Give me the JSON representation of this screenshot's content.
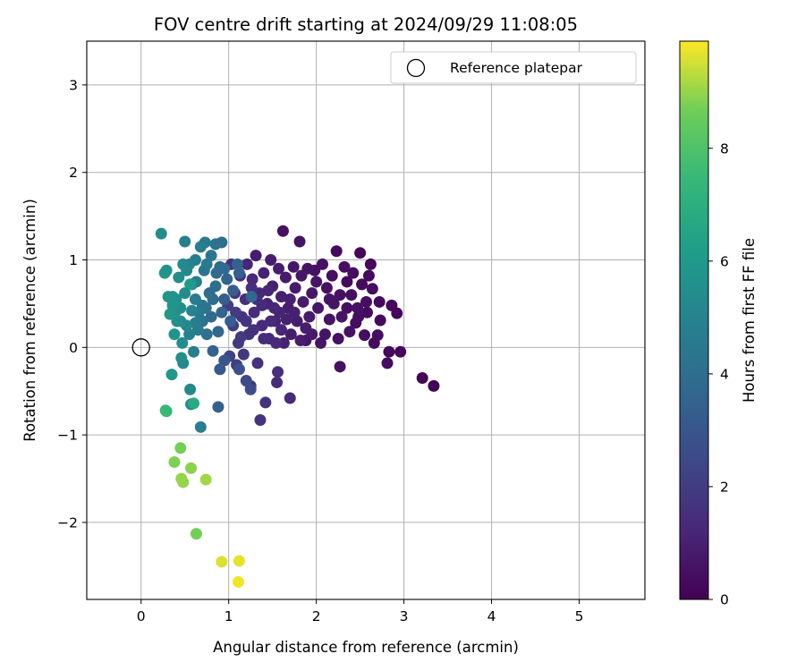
{
  "chart_data": {
    "type": "scatter",
    "title": "FOV centre drift starting at 2024/09/29 11:08:05",
    "xlabel": "Angular distance from reference (arcmin)",
    "ylabel": "Rotation from reference (arcmin)",
    "xlim": [
      -0.62,
      5.75
    ],
    "ylim": [
      -2.88,
      3.5
    ],
    "xticks": [
      0,
      1,
      2,
      3,
      4,
      5
    ],
    "yticks": [
      -2,
      -1,
      0,
      1,
      2,
      3
    ],
    "grid": true,
    "legend": {
      "placement": "upper right",
      "entries": [
        "Reference platepar"
      ]
    },
    "reference_point": {
      "x": 0,
      "y": 0,
      "label": "Reference platepar"
    },
    "colorbar": {
      "label": "Hours from first FF file",
      "colormap": "viridis",
      "min": 0,
      "max": 9.9,
      "ticks": [
        0,
        2,
        4,
        6,
        8
      ]
    },
    "points": [
      {
        "x": 3.34,
        "y": -0.44,
        "h": 0.1
      },
      {
        "x": 3.21,
        "y": -0.35,
        "h": 0.1
      },
      {
        "x": 2.96,
        "y": -0.05,
        "h": 0.2
      },
      {
        "x": 2.92,
        "y": 0.39,
        "h": 0.2
      },
      {
        "x": 2.86,
        "y": 0.48,
        "h": 0.3
      },
      {
        "x": 2.83,
        "y": -0.05,
        "h": 0.2
      },
      {
        "x": 2.81,
        "y": -0.18,
        "h": 0.3
      },
      {
        "x": 2.73,
        "y": 0.31,
        "h": 0.3
      },
      {
        "x": 2.72,
        "y": 0.52,
        "h": 0.3
      },
      {
        "x": 2.7,
        "y": 0.14,
        "h": 0.4
      },
      {
        "x": 2.66,
        "y": 0.05,
        "h": 0.3
      },
      {
        "x": 2.64,
        "y": 0.67,
        "h": 0.4
      },
      {
        "x": 2.62,
        "y": 0.95,
        "h": 0.2
      },
      {
        "x": 2.6,
        "y": 0.82,
        "h": 0.3
      },
      {
        "x": 2.57,
        "y": 0.52,
        "h": 0.4
      },
      {
        "x": 2.55,
        "y": 0.14,
        "h": 0.4
      },
      {
        "x": 2.52,
        "y": 0.72,
        "h": 0.3
      },
      {
        "x": 2.5,
        "y": 1.08,
        "h": 0.2
      },
      {
        "x": 2.47,
        "y": 0.45,
        "h": 0.5
      },
      {
        "x": 2.45,
        "y": 0.28,
        "h": 0.4
      },
      {
        "x": 2.42,
        "y": 0.85,
        "h": 0.4
      },
      {
        "x": 2.4,
        "y": 0.6,
        "h": 0.5
      },
      {
        "x": 2.38,
        "y": 0.18,
        "h": 0.5
      },
      {
        "x": 2.35,
        "y": 0.75,
        "h": 0.3
      },
      {
        "x": 2.32,
        "y": 0.92,
        "h": 0.4
      },
      {
        "x": 2.29,
        "y": 0.35,
        "h": 0.6
      },
      {
        "x": 2.27,
        "y": 0.6,
        "h": 0.5
      },
      {
        "x": 2.27,
        "y": -0.22,
        "h": 0.5
      },
      {
        "x": 2.25,
        "y": 0.1,
        "h": 0.5
      },
      {
        "x": 2.23,
        "y": 1.1,
        "h": 0.3
      },
      {
        "x": 2.2,
        "y": 0.5,
        "h": 0.6
      },
      {
        "x": 2.18,
        "y": 0.82,
        "h": 0.4
      },
      {
        "x": 2.15,
        "y": 0.32,
        "h": 0.6
      },
      {
        "x": 2.12,
        "y": 0.68,
        "h": 0.5
      },
      {
        "x": 2.1,
        "y": 0.15,
        "h": 0.6
      },
      {
        "x": 2.07,
        "y": 0.95,
        "h": 0.5
      },
      {
        "x": 2.05,
        "y": 0.05,
        "h": 0.6
      },
      {
        "x": 2.02,
        "y": 0.45,
        "h": 0.7
      },
      {
        "x": 2.0,
        "y": 0.75,
        "h": 0.6
      },
      {
        "x": 1.98,
        "y": 0.88,
        "h": 0.5
      },
      {
        "x": 1.95,
        "y": 0.62,
        "h": 0.7
      },
      {
        "x": 1.92,
        "y": 0.35,
        "h": 0.8
      },
      {
        "x": 1.9,
        "y": 0.9,
        "h": 0.6
      },
      {
        "x": 1.88,
        "y": 0.08,
        "h": 0.7
      },
      {
        "x": 1.85,
        "y": 0.52,
        "h": 0.8
      },
      {
        "x": 1.83,
        "y": 0.82,
        "h": 0.7
      },
      {
        "x": 1.81,
        "y": 1.21,
        "h": 0.6
      },
      {
        "x": 1.78,
        "y": 0.3,
        "h": 0.9
      },
      {
        "x": 1.76,
        "y": 0.68,
        "h": 0.8
      },
      {
        "x": 1.74,
        "y": 0.92,
        "h": 0.7
      },
      {
        "x": 1.71,
        "y": 0.15,
        "h": 0.9
      },
      {
        "x": 1.7,
        "y": -0.58,
        "h": 1.3
      },
      {
        "x": 1.68,
        "y": 0.45,
        "h": 0.9
      },
      {
        "x": 1.65,
        "y": 0.8,
        "h": 0.8
      },
      {
        "x": 1.63,
        "y": 0.05,
        "h": 1.0
      },
      {
        "x": 1.62,
        "y": 1.33,
        "h": 0.5
      },
      {
        "x": 1.6,
        "y": 0.58,
        "h": 1.0
      },
      {
        "x": 1.57,
        "y": 0.9,
        "h": 0.9
      },
      {
        "x": 1.56,
        "y": -0.28,
        "h": 1.5
      },
      {
        "x": 1.55,
        "y": -0.4,
        "h": 1.4
      },
      {
        "x": 1.53,
        "y": 0.3,
        "h": 1.1
      },
      {
        "x": 1.5,
        "y": 0.7,
        "h": 1.0
      },
      {
        "x": 1.48,
        "y": 1.0,
        "h": 0.9
      },
      {
        "x": 1.46,
        "y": 0.1,
        "h": 1.2
      },
      {
        "x": 1.44,
        "y": 0.5,
        "h": 1.1
      },
      {
        "x": 1.42,
        "y": -0.63,
        "h": 1.6
      },
      {
        "x": 1.4,
        "y": 0.85,
        "h": 1.0
      },
      {
        "x": 1.38,
        "y": 0.25,
        "h": 1.3
      },
      {
        "x": 1.36,
        "y": -0.83,
        "h": 1.7
      },
      {
        "x": 1.35,
        "y": 0.62,
        "h": 1.2
      },
      {
        "x": 1.33,
        "y": -0.18,
        "h": 1.6
      },
      {
        "x": 1.31,
        "y": 1.05,
        "h": 0.9
      },
      {
        "x": 1.29,
        "y": 0.4,
        "h": 1.4
      },
      {
        "x": 1.27,
        "y": 0.78,
        "h": 1.3
      },
      {
        "x": 1.25,
        "y": -0.44,
        "h": 1.8
      },
      {
        "x": 1.23,
        "y": 0.15,
        "h": 1.6
      },
      {
        "x": 1.21,
        "y": 0.95,
        "h": 1.2
      },
      {
        "x": 1.19,
        "y": 0.55,
        "h": 1.5
      },
      {
        "x": 1.17,
        "y": -0.08,
        "h": 1.8
      },
      {
        "x": 1.15,
        "y": 0.35,
        "h": 1.7
      },
      {
        "x": 1.13,
        "y": 0.82,
        "h": 1.4
      },
      {
        "x": 1.11,
        "y": 0.05,
        "h": 1.9
      },
      {
        "x": 1.09,
        "y": -0.2,
        "h": 2.0
      },
      {
        "x": 1.07,
        "y": 0.62,
        "h": 1.7
      },
      {
        "x": 1.05,
        "y": 0.25,
        "h": 2.0
      },
      {
        "x": 1.03,
        "y": 0.95,
        "h": 1.6
      },
      {
        "x": 1.01,
        "y": -0.1,
        "h": 2.2
      },
      {
        "x": 0.99,
        "y": 0.48,
        "h": 2.1
      },
      {
        "x": 1.88,
        "y": 0.22,
        "h": 0.9
      },
      {
        "x": 1.75,
        "y": 0.4,
        "h": 1.0
      },
      {
        "x": 1.6,
        "y": 0.2,
        "h": 1.2
      },
      {
        "x": 1.52,
        "y": 0.45,
        "h": 1.2
      },
      {
        "x": 1.45,
        "y": 0.65,
        "h": 1.2
      },
      {
        "x": 1.4,
        "y": 0.1,
        "h": 1.4
      },
      {
        "x": 1.32,
        "y": 0.55,
        "h": 1.4
      },
      {
        "x": 1.28,
        "y": 0.2,
        "h": 1.6
      },
      {
        "x": 1.7,
        "y": 0.55,
        "h": 1.0
      },
      {
        "x": 1.58,
        "y": 0.4,
        "h": 1.1
      },
      {
        "x": 1.48,
        "y": 0.3,
        "h": 1.3
      },
      {
        "x": 1.38,
        "y": 0.48,
        "h": 1.3
      },
      {
        "x": 1.26,
        "y": 0.68,
        "h": 1.5
      },
      {
        "x": 1.2,
        "y": 0.3,
        "h": 1.7
      },
      {
        "x": 1.14,
        "y": 0.12,
        "h": 1.9
      },
      {
        "x": 1.08,
        "y": 0.4,
        "h": 1.9
      },
      {
        "x": 2.35,
        "y": 0.45,
        "h": 0.4
      },
      {
        "x": 2.48,
        "y": 0.35,
        "h": 0.4
      },
      {
        "x": 2.58,
        "y": 0.4,
        "h": 0.3
      },
      {
        "x": 2.15,
        "y": 0.55,
        "h": 0.6
      },
      {
        "x": 1.95,
        "y": 0.15,
        "h": 0.8
      },
      {
        "x": 1.82,
        "y": 0.08,
        "h": 0.9
      },
      {
        "x": 1.66,
        "y": 0.32,
        "h": 1.0
      },
      {
        "x": 1.54,
        "y": 0.05,
        "h": 1.3
      },
      {
        "x": 1.25,
        "y": -0.48,
        "h": 2.6
      },
      {
        "x": 1.2,
        "y": -0.38,
        "h": 2.5
      },
      {
        "x": 1.12,
        "y": -0.25,
        "h": 2.8
      },
      {
        "x": 0.95,
        "y": -0.15,
        "h": 3.0
      },
      {
        "x": 0.9,
        "y": -0.25,
        "h": 3.1
      },
      {
        "x": 0.88,
        "y": -0.68,
        "h": 3.4
      },
      {
        "x": 1.26,
        "y": 0.58,
        "h": 3.7
      },
      {
        "x": 0.95,
        "y": 0.55,
        "h": 3.3
      },
      {
        "x": 0.82,
        "y": -0.04,
        "h": 3.5
      },
      {
        "x": 0.8,
        "y": 0.35,
        "h": 3.8
      },
      {
        "x": 0.78,
        "y": 0.62,
        "h": 3.9
      },
      {
        "x": 0.75,
        "y": 0.15,
        "h": 4.1
      },
      {
        "x": 0.72,
        "y": 0.88,
        "h": 4.3
      },
      {
        "x": 0.7,
        "y": 0.48,
        "h": 4.4
      },
      {
        "x": 0.68,
        "y": -0.91,
        "h": 4.7
      },
      {
        "x": 0.65,
        "y": 0.2,
        "h": 4.6
      },
      {
        "x": 0.63,
        "y": 0.75,
        "h": 4.7
      },
      {
        "x": 0.6,
        "y": -0.05,
        "h": 4.8
      },
      {
        "x": 0.58,
        "y": 0.42,
        "h": 5.0
      },
      {
        "x": 0.57,
        "y": -0.65,
        "h": 5.3
      },
      {
        "x": 0.56,
        "y": -0.48,
        "h": 5.2
      },
      {
        "x": 0.55,
        "y": 0.95,
        "h": 5.0
      },
      {
        "x": 0.52,
        "y": 0.25,
        "h": 5.2
      },
      {
        "x": 0.5,
        "y": 0.62,
        "h": 5.3
      },
      {
        "x": 0.48,
        "y": -0.18,
        "h": 5.3
      },
      {
        "x": 0.47,
        "y": 0.05,
        "h": 5.4
      },
      {
        "x": 0.46,
        "y": -0.12,
        "h": 5.5
      },
      {
        "x": 0.45,
        "y": 0.45,
        "h": 5.5
      },
      {
        "x": 0.43,
        "y": 0.8,
        "h": 5.4
      },
      {
        "x": 0.41,
        "y": 0.3,
        "h": 5.6
      },
      {
        "x": 0.4,
        "y": 0.55,
        "h": 5.7
      },
      {
        "x": 0.38,
        "y": 0.15,
        "h": 5.8
      },
      {
        "x": 0.36,
        "y": 0.48,
        "h": 5.8
      },
      {
        "x": 0.35,
        "y": -0.31,
        "h": 5.9
      },
      {
        "x": 0.33,
        "y": 0.38,
        "h": 5.9
      },
      {
        "x": 0.31,
        "y": 0.58,
        "h": 5.8
      },
      {
        "x": 0.29,
        "y": 0.88,
        "h": 5.6
      },
      {
        "x": 0.27,
        "y": 0.85,
        "h": 5.8
      },
      {
        "x": 0.23,
        "y": 1.3,
        "h": 5.4
      },
      {
        "x": 0.85,
        "y": 1.18,
        "h": 4.2
      },
      {
        "x": 0.92,
        "y": 1.2,
        "h": 4.0
      },
      {
        "x": 0.5,
        "y": 1.21,
        "h": 4.8
      },
      {
        "x": 0.73,
        "y": 1.2,
        "h": 4.5
      },
      {
        "x": 0.68,
        "y": 1.15,
        "h": 4.7
      },
      {
        "x": 0.9,
        "y": 0.92,
        "h": 3.8
      },
      {
        "x": 1.12,
        "y": 0.85,
        "h": 3.4
      },
      {
        "x": 1.1,
        "y": 0.95,
        "h": 3.5
      },
      {
        "x": 0.98,
        "y": 0.78,
        "h": 3.6
      },
      {
        "x": 0.85,
        "y": 0.7,
        "h": 4.0
      },
      {
        "x": 0.8,
        "y": 1.05,
        "h": 4.4
      },
      {
        "x": 0.75,
        "y": 0.95,
        "h": 4.5
      },
      {
        "x": 0.62,
        "y": 1.0,
        "h": 4.8
      },
      {
        "x": 0.58,
        "y": 0.72,
        "h": 5.1
      },
      {
        "x": 0.52,
        "y": 0.88,
        "h": 5.2
      },
      {
        "x": 0.48,
        "y": 0.95,
        "h": 5.3
      },
      {
        "x": 0.92,
        "y": 0.4,
        "h": 3.6
      },
      {
        "x": 0.88,
        "y": 0.18,
        "h": 3.7
      },
      {
        "x": 1.02,
        "y": 0.3,
        "h": 3.4
      },
      {
        "x": 1.05,
        "y": 0.65,
        "h": 3.3
      },
      {
        "x": 0.7,
        "y": 0.3,
        "h": 4.3
      },
      {
        "x": 0.62,
        "y": 0.55,
        "h": 4.6
      },
      {
        "x": 0.55,
        "y": 0.15,
        "h": 4.9
      },
      {
        "x": 0.45,
        "y": 0.3,
        "h": 5.3
      },
      {
        "x": 0.4,
        "y": 0.42,
        "h": 5.4
      },
      {
        "x": 0.36,
        "y": 0.58,
        "h": 5.6
      },
      {
        "x": 0.62,
        "y": 0.28,
        "h": 4.7
      },
      {
        "x": 0.66,
        "y": 0.4,
        "h": 4.5
      },
      {
        "x": 0.74,
        "y": 0.45,
        "h": 4.2
      },
      {
        "x": 0.82,
        "y": 0.55,
        "h": 3.9
      },
      {
        "x": 0.86,
        "y": 0.85,
        "h": 3.9
      },
      {
        "x": 0.95,
        "y": 0.9,
        "h": 3.7
      },
      {
        "x": 0.56,
        "y": 0.72,
        "h": 6.1
      },
      {
        "x": 0.6,
        "y": -0.64,
        "h": 6.8
      },
      {
        "x": 0.28,
        "y": -0.72,
        "h": 7.5
      },
      {
        "x": 0.29,
        "y": -0.73,
        "h": 7.5
      },
      {
        "x": 0.45,
        "y": -1.15,
        "h": 8.7
      },
      {
        "x": 0.38,
        "y": -1.31,
        "h": 8.8
      },
      {
        "x": 0.57,
        "y": -1.38,
        "h": 8.9
      },
      {
        "x": 0.46,
        "y": -1.5,
        "h": 9.0
      },
      {
        "x": 0.48,
        "y": -1.54,
        "h": 9.0
      },
      {
        "x": 0.74,
        "y": -1.51,
        "h": 9.1
      },
      {
        "x": 0.63,
        "y": -2.13,
        "h": 8.7
      },
      {
        "x": 0.92,
        "y": -2.45,
        "h": 9.6
      },
      {
        "x": 1.12,
        "y": -2.44,
        "h": 9.7
      },
      {
        "x": 1.11,
        "y": -2.68,
        "h": 9.8
      }
    ]
  }
}
